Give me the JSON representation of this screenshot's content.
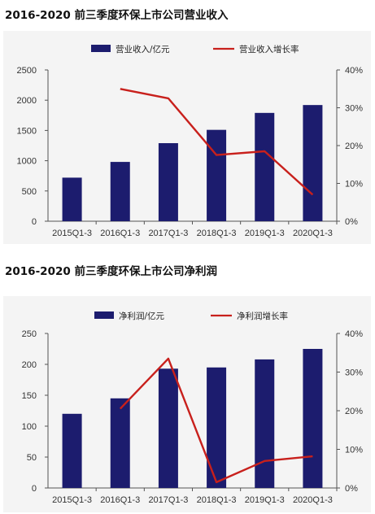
{
  "titles": {
    "chart1": "2016-2020 前三季度环保上市公司营业收入",
    "chart2": "2016-2020 前三季度环保上市公司净利润"
  },
  "colors": {
    "bar": "#1c1c6e",
    "line": "#c8201c",
    "panel": "#f4f4f4"
  },
  "chart_data": [
    {
      "type": "bar",
      "categories": [
        "2015Q1-3",
        "2016Q1-3",
        "2017Q1-3",
        "2018Q1-3",
        "2019Q1-3",
        "2020Q1-3"
      ],
      "series": [
        {
          "name": "营业收入/亿元",
          "type": "bar",
          "axis": "left",
          "values": [
            720,
            980,
            1290,
            1510,
            1790,
            1920
          ]
        },
        {
          "name": "营业收入增长率",
          "type": "line",
          "axis": "right",
          "values": [
            null,
            35,
            32.5,
            17.5,
            18.5,
            7
          ]
        }
      ],
      "y_left": {
        "lim": [
          0,
          2500
        ],
        "ticks": [
          "0",
          "500",
          "1000",
          "1500",
          "2000",
          "2500"
        ]
      },
      "y_right": {
        "lim": [
          0,
          40
        ],
        "ticks": [
          "0%",
          "10%",
          "20%",
          "30%",
          "40%"
        ]
      },
      "legend": "top"
    },
    {
      "type": "bar",
      "categories": [
        "2015Q1-3",
        "2016Q1-3",
        "2017Q1-3",
        "2018Q1-3",
        "2019Q1-3",
        "2020Q1-3"
      ],
      "series": [
        {
          "name": "净利润/亿元",
          "type": "bar",
          "axis": "left",
          "values": [
            120,
            145,
            193,
            195,
            208,
            225
          ]
        },
        {
          "name": "净利润增长率",
          "type": "line",
          "axis": "right",
          "values": [
            null,
            20.5,
            33.5,
            1.5,
            7,
            8.2
          ]
        }
      ],
      "y_left": {
        "lim": [
          0,
          250
        ],
        "ticks": [
          "0",
          "50",
          "100",
          "150",
          "200",
          "250"
        ]
      },
      "y_right": {
        "lim": [
          0,
          40
        ],
        "ticks": [
          "0%",
          "10%",
          "20%",
          "30%",
          "40%"
        ]
      },
      "legend": "top"
    }
  ]
}
